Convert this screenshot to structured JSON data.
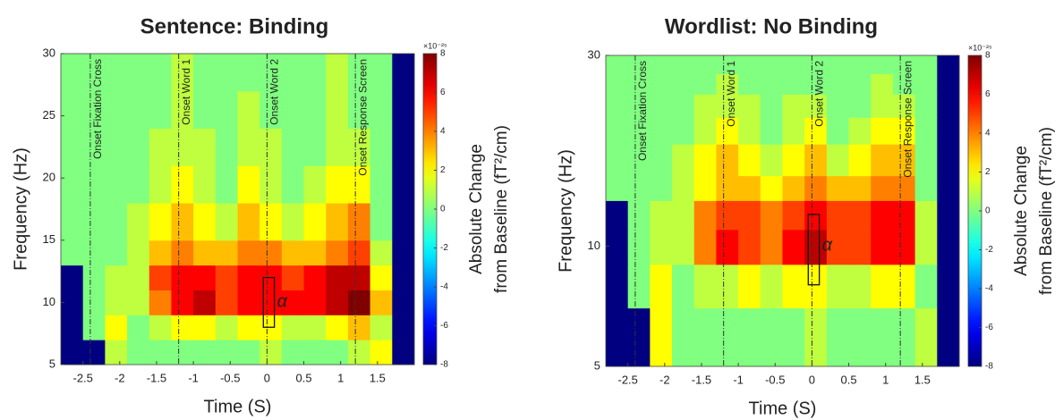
{
  "chart_data": [
    {
      "type": "heatmap",
      "title": "Sentence: Binding",
      "x_label": "Time (S)",
      "y_label": "Frequency (Hz)",
      "colorbar_label": [
        "Absolute Change",
        "from Baseline (fT²/cm)"
      ],
      "colorbar_exponent": "×10⁻²⁵",
      "colormap": "jet",
      "clim": [
        -8,
        8
      ],
      "cticks": [
        -8,
        -6,
        -4,
        -2,
        0,
        2,
        4,
        6,
        8
      ],
      "xlim": [
        -2.8,
        2.0
      ],
      "xticks": [
        -2.5,
        -2,
        -1.5,
        -1,
        -0.5,
        0,
        0.5,
        1,
        1.5
      ],
      "ylim": [
        5,
        30
      ],
      "yticks": [
        5,
        10,
        15,
        20,
        25,
        30
      ],
      "log_y": false,
      "x_edges": [
        -2.8,
        -2.5,
        -2.2,
        -1.9,
        -1.6,
        -1.3,
        -1.0,
        -0.7,
        -0.4,
        -0.1,
        0.2,
        0.5,
        0.8,
        1.1,
        1.4,
        1.7,
        2.0
      ],
      "y_edges": [
        5,
        7,
        9,
        11,
        13,
        15,
        18,
        21,
        24,
        27,
        30
      ],
      "z": [
        [
          -8,
          -8,
          1,
          0,
          0,
          0,
          0,
          0,
          0,
          1,
          0,
          0,
          0,
          1,
          2,
          -8
        ],
        [
          -8,
          0,
          2,
          0,
          1,
          2,
          2,
          1,
          2,
          2,
          1,
          1,
          2,
          3,
          1,
          -8
        ],
        [
          -8,
          0,
          1,
          1,
          4,
          6,
          7,
          5,
          6,
          6,
          6,
          6,
          7,
          8,
          3,
          -8
        ],
        [
          -8,
          0,
          1,
          1,
          5,
          6,
          6,
          5,
          6,
          6,
          5,
          6,
          7,
          7,
          2,
          -8
        ],
        [
          0,
          0,
          0,
          1,
          3,
          4,
          3,
          3,
          4,
          4,
          3,
          3,
          4,
          5,
          1,
          -8
        ],
        [
          0,
          0,
          0,
          1,
          2,
          3,
          2,
          1,
          3,
          2,
          1,
          2,
          3,
          4,
          0,
          -8
        ],
        [
          0,
          0,
          0,
          0,
          1,
          2,
          1,
          0,
          2,
          1,
          0,
          1,
          2,
          2,
          0,
          -8
        ],
        [
          0,
          0,
          0,
          0,
          1,
          1,
          1,
          0,
          1,
          1,
          0,
          0,
          1,
          1,
          0,
          -8
        ],
        [
          0,
          0,
          0,
          0,
          0,
          1,
          0,
          0,
          1,
          0,
          0,
          0,
          1,
          0,
          0,
          -8
        ],
        [
          0,
          0,
          0,
          0,
          0,
          1,
          0,
          0,
          0,
          0,
          0,
          0,
          1,
          0,
          0,
          -8
        ]
      ],
      "annotations": [
        {
          "x": -2.4,
          "label": "Onset Fixation Cross"
        },
        {
          "x": -1.2,
          "label": "Onset Word 1"
        },
        {
          "x": 0,
          "label": "Onset Word 2"
        },
        {
          "x": 1.2,
          "label": "Onset Response Screen"
        }
      ],
      "box": {
        "x": [
          -0.05,
          0.1
        ],
        "y": [
          8,
          12
        ],
        "label": "α"
      }
    },
    {
      "type": "heatmap",
      "title": "Wordlist: No Binding",
      "x_label": "Time (S)",
      "y_label": "Frequency (Hz)",
      "colorbar_label": [
        "Absolute Change",
        "from Baseline (fT²/cm)"
      ],
      "colorbar_exponent": "×10⁻²⁵",
      "colormap": "jet",
      "clim": [
        -8,
        8
      ],
      "cticks": [
        -8,
        -6,
        -4,
        -2,
        0,
        2,
        4,
        6,
        8
      ],
      "xlim": [
        -2.8,
        2.0
      ],
      "xticks": [
        -2.5,
        -2,
        -1.5,
        -1,
        -0.5,
        0,
        0.5,
        1,
        1.5
      ],
      "ylim": [
        5,
        30
      ],
      "yticks": [
        5,
        10,
        30
      ],
      "log_y": true,
      "x_edges": [
        -2.8,
        -2.5,
        -2.2,
        -1.9,
        -1.6,
        -1.3,
        -1.0,
        -0.7,
        -0.4,
        -0.1,
        0.2,
        0.5,
        0.8,
        1.1,
        1.4,
        1.7,
        2.0
      ],
      "y_edges": [
        5,
        7,
        9,
        11,
        13,
        15,
        18,
        21,
        24,
        27,
        30
      ],
      "z": [
        [
          -8,
          -8,
          2,
          0,
          0,
          0,
          0,
          0,
          0,
          1,
          0,
          0,
          0,
          0,
          1,
          -8
        ],
        [
          -8,
          0,
          2,
          0,
          1,
          1,
          2,
          1,
          2,
          2,
          1,
          1,
          2,
          2,
          0,
          -8
        ],
        [
          -8,
          0,
          1,
          1,
          4,
          6,
          5,
          4,
          6,
          7,
          5,
          5,
          6,
          6,
          1,
          -8
        ],
        [
          -8,
          0,
          1,
          1,
          4,
          5,
          5,
          4,
          5,
          6,
          5,
          5,
          6,
          6,
          1,
          -8
        ],
        [
          0,
          0,
          0,
          1,
          2,
          3,
          3,
          2,
          3,
          4,
          3,
          3,
          4,
          4,
          0,
          -8
        ],
        [
          0,
          0,
          0,
          1,
          2,
          3,
          2,
          1,
          2,
          3,
          1,
          2,
          3,
          3,
          0,
          -8
        ],
        [
          0,
          0,
          0,
          0,
          1,
          2,
          1,
          0,
          1,
          2,
          0,
          1,
          2,
          2,
          0,
          -8
        ],
        [
          0,
          0,
          0,
          0,
          1,
          1,
          1,
          0,
          1,
          1,
          0,
          0,
          1,
          1,
          0,
          -8
        ],
        [
          0,
          0,
          0,
          0,
          0,
          1,
          0,
          0,
          0,
          0,
          0,
          0,
          1,
          0,
          0,
          -8
        ],
        [
          0,
          0,
          0,
          0,
          0,
          0,
          0,
          0,
          0,
          0,
          0,
          0,
          0,
          0,
          0,
          -8
        ]
      ],
      "annotations": [
        {
          "x": -2.4,
          "label": "Onset Fixation Cross"
        },
        {
          "x": -1.2,
          "label": "Onset Word 1"
        },
        {
          "x": 0,
          "label": "Onset Word 2"
        },
        {
          "x": 1.2,
          "label": "Onset Response Screen"
        }
      ],
      "box": {
        "x": [
          -0.05,
          0.1
        ],
        "y": [
          8,
          12
        ],
        "label": "α"
      }
    }
  ]
}
